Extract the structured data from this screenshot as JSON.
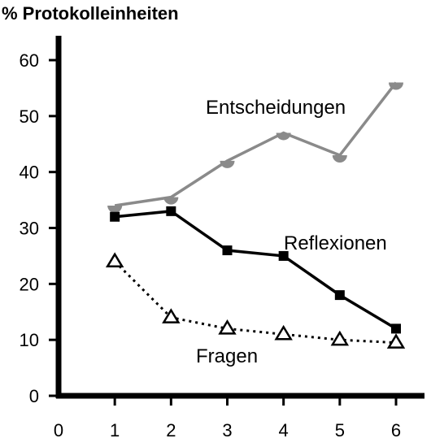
{
  "chart_data": {
    "type": "line",
    "ylabel": "% Protokolleinheiten",
    "xlabel": "",
    "xlim": [
      0,
      6
    ],
    "ylim": [
      0,
      60
    ],
    "x_ticks": [
      "0",
      "1",
      "2",
      "3",
      "4",
      "5",
      "6"
    ],
    "y_ticks": [
      "0",
      "10",
      "20",
      "30",
      "40",
      "50",
      "60"
    ],
    "grid": false,
    "legend": "none",
    "x": [
      1,
      2,
      3,
      4,
      5,
      6
    ],
    "series": [
      {
        "name": "Entscheidungen",
        "values": [
          34,
          35.5,
          42,
          47,
          43,
          56
        ],
        "color": "#8a8a8a",
        "marker": "half-circle",
        "line": "solid"
      },
      {
        "name": "Reflexionen",
        "values": [
          32,
          33,
          26,
          25,
          18,
          12
        ],
        "color": "#000000",
        "marker": "square",
        "line": "solid"
      },
      {
        "name": "Fragen",
        "values": [
          24,
          14,
          12,
          11,
          10,
          9.5
        ],
        "color": "#000000",
        "marker": "open-triangle",
        "line": "dotted"
      }
    ]
  }
}
